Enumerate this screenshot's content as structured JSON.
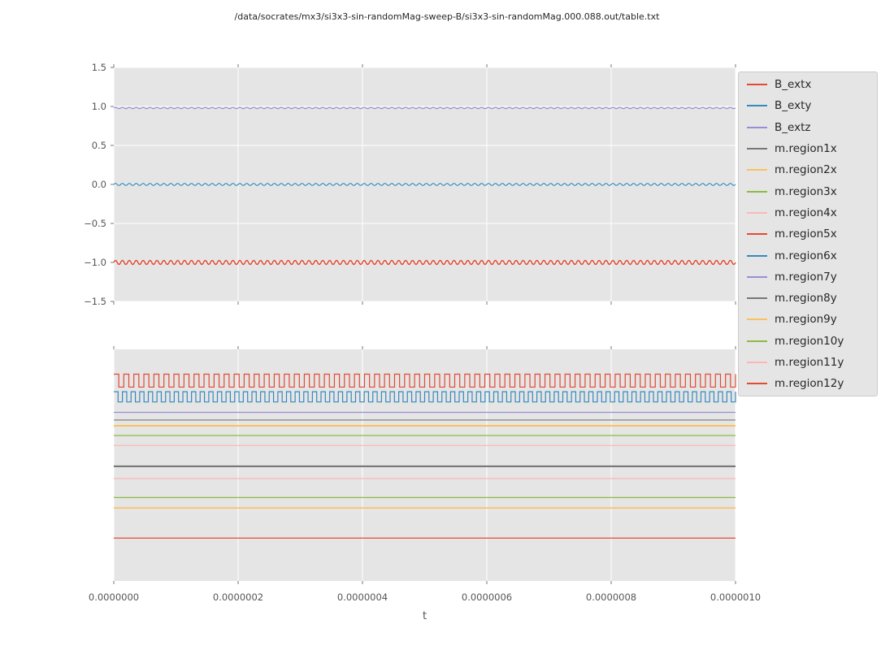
{
  "figure": {
    "title": "/data/socrates/mx3/si3x3-sin-randomMag-sweep-B/si3x3-sin-randomMag.000.088.out/table.txt"
  },
  "style": {
    "page_bg": "#ffffff",
    "axes_bg": "#e5e5e5",
    "grid_color": "#ffffff",
    "tick_color": "#555555",
    "tick_label_color": "#555555",
    "title_color": "#262626",
    "legend_bg": "#e5e5e5",
    "legend_border": "#cccccc",
    "legend_text_color": "#262626"
  },
  "legend": {
    "entries": [
      {
        "label": "B_extx",
        "color": "#E24A33"
      },
      {
        "label": "B_exty",
        "color": "#348ABD"
      },
      {
        "label": "B_extz",
        "color": "#988ED5"
      },
      {
        "label": "m.region1x",
        "color": "#777777"
      },
      {
        "label": "m.region2x",
        "color": "#FBC15E"
      },
      {
        "label": "m.region3x",
        "color": "#8EBA42"
      },
      {
        "label": "m.region4x",
        "color": "#FFB5B8"
      },
      {
        "label": "m.region5x",
        "color": "#E24A33"
      },
      {
        "label": "m.region6x",
        "color": "#348ABD"
      },
      {
        "label": "m.region7y",
        "color": "#988ED5"
      },
      {
        "label": "m.region8y",
        "color": "#777777"
      },
      {
        "label": "m.region9y",
        "color": "#FBC15E"
      },
      {
        "label": "m.region10y",
        "color": "#8EBA42"
      },
      {
        "label": "m.region11y",
        "color": "#FFB5B8"
      },
      {
        "label": "m.region12y",
        "color": "#E24A33"
      }
    ]
  },
  "chart_data": [
    {
      "type": "line",
      "title": "",
      "xlabel": "",
      "ylabel": "",
      "xlim": [
        0,
        1e-06
      ],
      "ylim": [
        -1.5,
        1.5
      ],
      "grid": true,
      "x_ticks": [
        0,
        2e-07,
        4e-07,
        6e-07,
        8e-07,
        1e-06
      ],
      "x_tick_labels": [],
      "y_ticks": [
        1.5,
        1.0,
        0.5,
        0.0,
        -0.5,
        -1.0,
        -1.5
      ],
      "y_tick_labels": [
        "1.5",
        "1.0",
        "0.5",
        "0.0",
        "−0.5",
        "−1.0",
        "−1.5"
      ],
      "series": [
        {
          "name": "B_extx",
          "color": "#E24A33",
          "waveform": "sine",
          "base": -1.0,
          "amplitude": 0.025,
          "cycles": 90,
          "linewidth": 1.5
        },
        {
          "name": "B_exty",
          "color": "#348ABD",
          "waveform": "sine",
          "base": 0.0,
          "amplitude": 0.012,
          "cycles": 90,
          "linewidth": 1.2
        },
        {
          "name": "B_extz",
          "color": "#988ED5",
          "waveform": "sine",
          "base": 0.98,
          "amplitude": 0.008,
          "cycles": 90,
          "linewidth": 1.2
        }
      ]
    },
    {
      "type": "line",
      "title": "",
      "xlabel": "t",
      "ylabel": "",
      "xlim": [
        0,
        1e-06
      ],
      "ylim": [
        0,
        1
      ],
      "grid": true,
      "x_ticks": [
        0,
        2e-07,
        4e-07,
        6e-07,
        8e-07,
        1e-06
      ],
      "x_tick_labels": [
        "0.0000000",
        "0.0000002",
        "0.0000004",
        "0.0000006",
        "0.0000008",
        "0.0000010"
      ],
      "y_ticks": [],
      "y_tick_labels": [],
      "series": [
        {
          "name": "m.region5x",
          "color": "#E24A33",
          "waveform": "square",
          "base": 0.865,
          "amplitude": 0.028,
          "cycles": 62,
          "linewidth": 1.2
        },
        {
          "name": "m.region6x",
          "color": "#348ABD",
          "waveform": "square",
          "base": 0.795,
          "amplitude": 0.022,
          "cycles": 72,
          "linewidth": 1.2
        },
        {
          "name": "m.region7y",
          "color": "#988ED5",
          "waveform": "flat",
          "base": 0.728,
          "linewidth": 1.2
        },
        {
          "name": "m.region1x",
          "color": "#777777",
          "waveform": "flat",
          "base": 0.695,
          "linewidth": 1.2
        },
        {
          "name": "m.region2x",
          "color": "#FBC15E",
          "waveform": "flat",
          "base": 0.67,
          "linewidth": 2.0
        },
        {
          "name": "m.region3x",
          "color": "#8EBA42",
          "waveform": "flat",
          "base": 0.628,
          "linewidth": 1.2
        },
        {
          "name": "m.region4x",
          "color": "#FFB5B8",
          "waveform": "flat",
          "base": 0.585,
          "linewidth": 1.2
        },
        {
          "name": "m.region8y",
          "color": "#777777",
          "waveform": "flat",
          "base": 0.495,
          "linewidth": 2.2
        },
        {
          "name": "m.region11y",
          "color": "#FFB5B8",
          "waveform": "flat",
          "base": 0.442,
          "linewidth": 1.2
        },
        {
          "name": "m.region10y",
          "color": "#8EBA42",
          "waveform": "flat",
          "base": 0.36,
          "linewidth": 1.2
        },
        {
          "name": "m.region9y",
          "color": "#FBC15E",
          "waveform": "flat",
          "base": 0.315,
          "linewidth": 1.6
        },
        {
          "name": "m.region12y",
          "color": "#E24A33",
          "waveform": "flat",
          "base": 0.185,
          "linewidth": 1.2
        }
      ]
    }
  ]
}
